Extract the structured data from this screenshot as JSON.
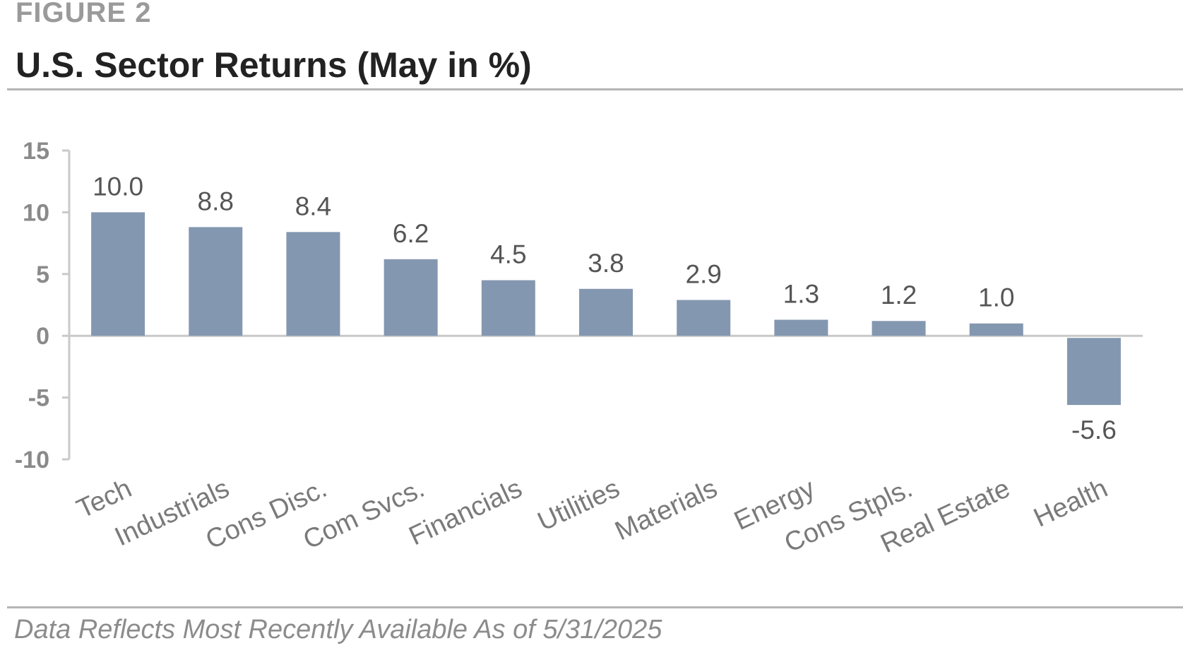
{
  "figure_label": "FIGURE 2",
  "title": "U.S. Sector Returns (May in %)",
  "footnote": "Data Reflects Most Recently Available As of 5/31/2025",
  "colors": {
    "bar": "#8497b0",
    "axis": "#c9c9c9",
    "rule": "#b5b5b5"
  },
  "chart_data": {
    "type": "bar",
    "categories": [
      "Tech",
      "Industrials",
      "Cons Disc.",
      "Com Svcs.",
      "Financials",
      "Utilities",
      "Materials",
      "Energy",
      "Cons Stpls.",
      "Real Estate",
      "Health"
    ],
    "values": [
      10.0,
      8.8,
      8.4,
      6.2,
      4.5,
      3.8,
      2.9,
      1.3,
      1.2,
      1.0,
      -5.6
    ],
    "data_labels": [
      "10.0",
      "8.8",
      "8.4",
      "6.2",
      "4.5",
      "3.8",
      "2.9",
      "1.3",
      "1.2",
      "1.0",
      "-5.6"
    ],
    "yticks": [
      15,
      10,
      5,
      0,
      -5,
      -10
    ],
    "ytick_labels": [
      "15",
      "10",
      "5",
      "0",
      "-5",
      "-10"
    ],
    "ylim": [
      -10,
      15
    ],
    "xlabel": "",
    "ylabel": "",
    "grid": false,
    "legend": "none"
  }
}
